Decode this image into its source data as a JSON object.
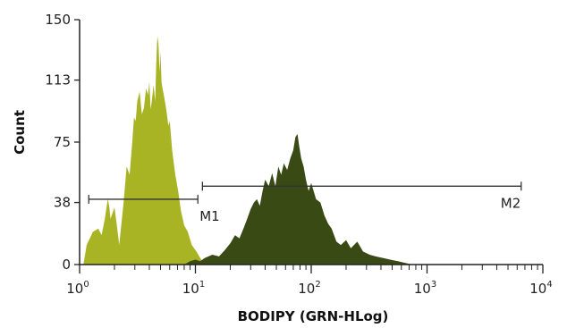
{
  "chart_data": {
    "type": "area",
    "title": "",
    "xlabel": "BODIPY (GRN-HLog)",
    "ylabel": "Count",
    "x_scale": "log",
    "xlim": [
      1,
      10000
    ],
    "ylim": [
      0,
      150
    ],
    "grid": false,
    "x_ticks": [
      {
        "value": 1,
        "base": "10",
        "exp": "0"
      },
      {
        "value": 10,
        "base": "10",
        "exp": "1"
      },
      {
        "value": 100,
        "base": "10",
        "exp": "2"
      },
      {
        "value": 1000,
        "base": "10",
        "exp": "3"
      },
      {
        "value": 10000,
        "base": "10",
        "exp": "4"
      }
    ],
    "y_ticks": [
      {
        "value": 0,
        "label": "0"
      },
      {
        "value": 38,
        "label": "38"
      },
      {
        "value": 75,
        "label": "75"
      },
      {
        "value": 113,
        "label": "113"
      },
      {
        "value": 150,
        "label": "150"
      }
    ],
    "series": [
      {
        "color": "#a8b424",
        "x": [
          1.08,
          1.15,
          1.3,
          1.45,
          1.55,
          1.65,
          1.75,
          1.8,
          1.85,
          2.0,
          2.1,
          2.2,
          2.4,
          2.55,
          2.7,
          2.85,
          2.95,
          3.05,
          3.15,
          3.3,
          3.45,
          3.6,
          3.75,
          3.9,
          4.0,
          4.1,
          4.2,
          4.35,
          4.5,
          4.6,
          4.7,
          4.8,
          4.9,
          5.0,
          5.1,
          5.2,
          5.4,
          5.6,
          5.85,
          6.0,
          6.3,
          6.7,
          7.1,
          7.5,
          8.0,
          8.6,
          9.3,
          10.2,
          11.0,
          12.0
        ],
        "values": [
          0,
          12,
          20,
          22,
          18,
          28,
          40,
          36,
          28,
          35,
          24,
          12,
          38,
          60,
          55,
          75,
          90,
          88,
          100,
          106,
          92,
          96,
          108,
          104,
          112,
          95,
          100,
          110,
          100,
          125,
          140,
          135,
          118,
          130,
          112,
          108,
          102,
          95,
          85,
          88,
          70,
          55,
          45,
          33,
          24,
          20,
          12,
          8,
          4,
          0
        ]
      },
      {
        "color": "#3a4a14",
        "x": [
          8,
          9,
          10,
          11,
          12,
          14,
          16,
          18,
          20,
          22,
          24,
          26,
          28,
          30,
          32,
          34,
          36,
          38,
          40,
          43,
          46,
          49,
          52,
          55,
          58,
          62,
          66,
          70,
          73,
          76,
          79,
          82,
          86,
          90,
          95,
          100,
          110,
          120,
          130,
          140,
          150,
          165,
          180,
          200,
          220,
          250,
          280,
          320,
          360,
          420,
          480,
          560,
          650,
          750
        ],
        "values": [
          0,
          2,
          3,
          2,
          4,
          6,
          5,
          9,
          13,
          18,
          16,
          22,
          28,
          34,
          38,
          40,
          36,
          45,
          52,
          48,
          56,
          48,
          60,
          55,
          62,
          58,
          65,
          70,
          78,
          80,
          72,
          65,
          60,
          52,
          45,
          50,
          40,
          38,
          30,
          25,
          22,
          14,
          12,
          15,
          10,
          14,
          8,
          6,
          5,
          4,
          3,
          2,
          1,
          0
        ]
      }
    ],
    "markers": [
      {
        "label": "M1",
        "x_start": 1.2,
        "x_end": 10.5,
        "y": 40
      },
      {
        "label": "M2",
        "x_start": 11.5,
        "x_end": 6500,
        "y": 48
      }
    ]
  }
}
